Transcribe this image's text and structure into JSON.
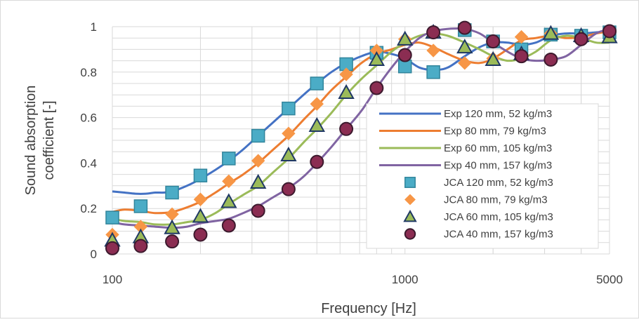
{
  "chart_data": {
    "type": "line",
    "title": "",
    "xlabel": "Frequency [Hz]",
    "ylabel_line1": "Sound absorption",
    "ylabel_line2": "coefficient [-]",
    "x_scale": "log",
    "xlim": [
      100,
      5000
    ],
    "ylim": [
      0,
      1
    ],
    "x_ticks": [
      100,
      1000,
      5000
    ],
    "x_tick_labels": [
      "100",
      "1000",
      "5000"
    ],
    "y_ticks": [
      0,
      0.2,
      0.4,
      0.6,
      0.8,
      1
    ],
    "y_tick_labels": [
      "0",
      "0.2",
      "0.4",
      "0.6",
      "0.8",
      "1"
    ],
    "grid": true,
    "legend_position": "bottom-right",
    "line_series": [
      {
        "name": "Exp 120 mm, 52 kg/m3",
        "color": "#4472C4",
        "points": [
          [
            100,
            0.275
          ],
          [
            110,
            0.27
          ],
          [
            120,
            0.265
          ],
          [
            130,
            0.265
          ],
          [
            140,
            0.27
          ],
          [
            150,
            0.27
          ],
          [
            160,
            0.275
          ],
          [
            180,
            0.3
          ],
          [
            200,
            0.33
          ],
          [
            225,
            0.37
          ],
          [
            250,
            0.41
          ],
          [
            280,
            0.46
          ],
          [
            315,
            0.52
          ],
          [
            355,
            0.58
          ],
          [
            400,
            0.64
          ],
          [
            450,
            0.7
          ],
          [
            500,
            0.75
          ],
          [
            560,
            0.8
          ],
          [
            630,
            0.84
          ],
          [
            710,
            0.87
          ],
          [
            800,
            0.89
          ],
          [
            900,
            0.88
          ],
          [
            1000,
            0.86
          ],
          [
            1120,
            0.82
          ],
          [
            1250,
            0.81
          ],
          [
            1400,
            0.82
          ],
          [
            1600,
            0.87
          ],
          [
            1800,
            0.91
          ],
          [
            2000,
            0.93
          ],
          [
            2240,
            0.93
          ],
          [
            2500,
            0.92
          ],
          [
            2800,
            0.93
          ],
          [
            3150,
            0.96
          ],
          [
            3550,
            0.97
          ],
          [
            4000,
            0.97
          ],
          [
            4500,
            0.975
          ],
          [
            5000,
            0.98
          ]
        ]
      },
      {
        "name": "Exp 80 mm, 79 kg/m3",
        "color": "#ED7D31",
        "points": [
          [
            100,
            0.185
          ],
          [
            110,
            0.195
          ],
          [
            125,
            0.19
          ],
          [
            140,
            0.18
          ],
          [
            160,
            0.185
          ],
          [
            180,
            0.205
          ],
          [
            200,
            0.23
          ],
          [
            225,
            0.27
          ],
          [
            250,
            0.31
          ],
          [
            280,
            0.35
          ],
          [
            315,
            0.4
          ],
          [
            355,
            0.46
          ],
          [
            400,
            0.52
          ],
          [
            450,
            0.59
          ],
          [
            500,
            0.65
          ],
          [
            560,
            0.72
          ],
          [
            630,
            0.78
          ],
          [
            710,
            0.84
          ],
          [
            800,
            0.88
          ],
          [
            900,
            0.9
          ],
          [
            1000,
            0.92
          ],
          [
            1120,
            0.93
          ],
          [
            1250,
            0.91
          ],
          [
            1400,
            0.88
          ],
          [
            1600,
            0.85
          ],
          [
            1800,
            0.84
          ],
          [
            2000,
            0.86
          ],
          [
            2240,
            0.9
          ],
          [
            2500,
            0.94
          ],
          [
            2800,
            0.95
          ],
          [
            3150,
            0.96
          ],
          [
            3550,
            0.95
          ],
          [
            4000,
            0.955
          ],
          [
            4500,
            0.97
          ],
          [
            5000,
            0.98
          ]
        ]
      },
      {
        "name": "Exp 60 mm, 105 kg/m3",
        "color": "#9BBB59",
        "points": [
          [
            100,
            0.155
          ],
          [
            110,
            0.145
          ],
          [
            125,
            0.14
          ],
          [
            140,
            0.13
          ],
          [
            160,
            0.13
          ],
          [
            180,
            0.14
          ],
          [
            200,
            0.15
          ],
          [
            225,
            0.18
          ],
          [
            250,
            0.22
          ],
          [
            280,
            0.26
          ],
          [
            315,
            0.3
          ],
          [
            355,
            0.36
          ],
          [
            400,
            0.42
          ],
          [
            450,
            0.49
          ],
          [
            500,
            0.55
          ],
          [
            560,
            0.62
          ],
          [
            630,
            0.7
          ],
          [
            710,
            0.77
          ],
          [
            800,
            0.83
          ],
          [
            900,
            0.89
          ],
          [
            1000,
            0.93
          ],
          [
            1120,
            0.96
          ],
          [
            1250,
            0.97
          ],
          [
            1400,
            0.96
          ],
          [
            1600,
            0.93
          ],
          [
            1800,
            0.9
          ],
          [
            2000,
            0.87
          ],
          [
            2240,
            0.85
          ],
          [
            2500,
            0.86
          ],
          [
            2800,
            0.89
          ],
          [
            3150,
            0.94
          ],
          [
            3550,
            0.96
          ],
          [
            4000,
            0.95
          ],
          [
            4500,
            0.93
          ],
          [
            5000,
            0.93
          ]
        ]
      },
      {
        "name": "Exp 40 mm, 157 kg/m3",
        "color": "#8064A2",
        "points": [
          [
            100,
            0.14
          ],
          [
            110,
            0.13
          ],
          [
            125,
            0.125
          ],
          [
            140,
            0.12
          ],
          [
            160,
            0.115
          ],
          [
            180,
            0.12
          ],
          [
            200,
            0.135
          ],
          [
            225,
            0.145
          ],
          [
            250,
            0.155
          ],
          [
            280,
            0.18
          ],
          [
            315,
            0.21
          ],
          [
            355,
            0.25
          ],
          [
            400,
            0.29
          ],
          [
            450,
            0.34
          ],
          [
            500,
            0.4
          ],
          [
            560,
            0.47
          ],
          [
            630,
            0.55
          ],
          [
            710,
            0.63
          ],
          [
            800,
            0.73
          ],
          [
            900,
            0.82
          ],
          [
            1000,
            0.89
          ],
          [
            1120,
            0.95
          ],
          [
            1250,
            0.98
          ],
          [
            1400,
            0.99
          ],
          [
            1600,
            0.99
          ],
          [
            1800,
            0.97
          ],
          [
            2000,
            0.93
          ],
          [
            2240,
            0.89
          ],
          [
            2500,
            0.86
          ],
          [
            2800,
            0.85
          ],
          [
            3150,
            0.855
          ],
          [
            3550,
            0.87
          ],
          [
            4000,
            0.92
          ],
          [
            4500,
            0.97
          ],
          [
            5000,
            0.99
          ]
        ]
      }
    ],
    "marker_series": [
      {
        "name": "JCA 120 mm, 52 kg/m3",
        "marker": "square",
        "fill": "#4BACC6",
        "stroke": "#31859C",
        "x": [
          100,
          125,
          160,
          200,
          250,
          315,
          400,
          500,
          630,
          800,
          1000,
          1250,
          1600,
          2000,
          2500,
          3150,
          4000,
          5000
        ],
        "y": [
          0.16,
          0.21,
          0.27,
          0.345,
          0.42,
          0.52,
          0.64,
          0.75,
          0.835,
          0.885,
          0.825,
          0.8,
          0.985,
          0.935,
          0.9,
          0.965,
          0.96,
          0.975
        ]
      },
      {
        "name": "JCA 80 mm, 79 kg/m3",
        "marker": "diamond",
        "fill": "#F79646",
        "stroke": "#F79646",
        "x": [
          100,
          125,
          160,
          200,
          250,
          315,
          400,
          500,
          630,
          800,
          1000,
          1250,
          1600,
          2000,
          2500,
          3150,
          4000,
          5000
        ],
        "y": [
          0.085,
          0.12,
          0.175,
          0.24,
          0.32,
          0.41,
          0.53,
          0.66,
          0.79,
          0.895,
          0.945,
          0.895,
          0.84,
          0.86,
          0.955,
          0.97,
          0.955,
          0.98
        ]
      },
      {
        "name": "JCA 60 mm, 105 kg/m3",
        "marker": "triangle",
        "fill": "#9BBB59",
        "stroke": "#1F3864",
        "x": [
          100,
          125,
          160,
          200,
          250,
          315,
          400,
          500,
          630,
          800,
          1000,
          1250,
          1600,
          2000,
          2500,
          3150,
          4000,
          5000
        ],
        "y": [
          0.06,
          0.075,
          0.115,
          0.165,
          0.23,
          0.315,
          0.435,
          0.565,
          0.71,
          0.855,
          0.945,
          0.975,
          0.91,
          0.855,
          0.88,
          0.97,
          0.96,
          0.955
        ]
      },
      {
        "name": "JCA 40 mm, 157 kg/m3",
        "marker": "circle",
        "fill": "#8B2D52",
        "stroke": "#3D1A2E",
        "x": [
          100,
          125,
          160,
          200,
          250,
          315,
          400,
          500,
          630,
          800,
          1000,
          1250,
          1600,
          2000,
          2500,
          3150,
          4000,
          5000
        ],
        "y": [
          0.025,
          0.035,
          0.055,
          0.085,
          0.125,
          0.19,
          0.285,
          0.405,
          0.55,
          0.73,
          0.875,
          0.975,
          0.995,
          0.935,
          0.87,
          0.855,
          0.945,
          0.98
        ]
      }
    ]
  }
}
